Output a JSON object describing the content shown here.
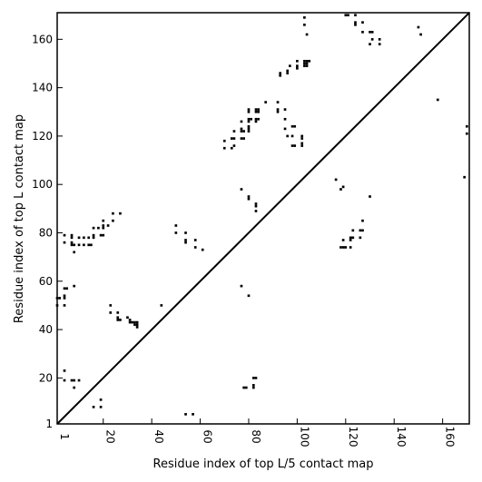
{
  "chart_data": {
    "type": "scatter",
    "xlabel": "Residue index of top L/5 contact map",
    "ylabel": "Residue index of top L contact map",
    "xlim": [
      1,
      171
    ],
    "ylim": [
      1,
      171
    ],
    "xticks": [
      {
        "value": 1,
        "label": "1"
      },
      {
        "value": 20,
        "label": "20"
      },
      {
        "value": 40,
        "label": "40"
      },
      {
        "value": 60,
        "label": "60"
      },
      {
        "value": 80,
        "label": "80"
      },
      {
        "value": 100,
        "label": "100"
      },
      {
        "value": 120,
        "label": "120"
      },
      {
        "value": 140,
        "label": "140"
      },
      {
        "value": 160,
        "label": "160"
      }
    ],
    "yticks": [
      {
        "value": 1,
        "label": "1"
      },
      {
        "value": 20,
        "label": "20"
      },
      {
        "value": 40,
        "label": "40"
      },
      {
        "value": 60,
        "label": "60"
      },
      {
        "value": 80,
        "label": "80"
      },
      {
        "value": 100,
        "label": "100"
      },
      {
        "value": 120,
        "label": "120"
      },
      {
        "value": 140,
        "label": "140"
      },
      {
        "value": 160,
        "label": "160"
      }
    ],
    "diagonal": [
      [
        1,
        1
      ],
      [
        171,
        171
      ]
    ],
    "grid": false,
    "marker": "square",
    "color": "#000000",
    "points": [
      [
        1,
        53
      ],
      [
        2,
        53
      ],
      [
        1,
        50
      ],
      [
        4,
        57
      ],
      [
        5,
        57
      ],
      [
        8,
        58
      ],
      [
        4,
        53
      ],
      [
        4,
        54
      ],
      [
        4,
        50
      ],
      [
        4,
        23
      ],
      [
        4,
        19
      ],
      [
        7,
        19
      ],
      [
        8,
        19
      ],
      [
        10,
        19
      ],
      [
        8,
        16
      ],
      [
        4,
        79
      ],
      [
        4,
        76
      ],
      [
        7,
        79
      ],
      [
        7,
        78
      ],
      [
        7,
        76
      ],
      [
        7,
        75
      ],
      [
        8,
        75
      ],
      [
        10,
        75
      ],
      [
        12,
        75
      ],
      [
        14,
        75
      ],
      [
        15,
        75
      ],
      [
        10,
        78
      ],
      [
        12,
        78
      ],
      [
        14,
        78
      ],
      [
        8,
        72
      ],
      [
        16,
        79
      ],
      [
        16,
        78
      ],
      [
        16,
        82
      ],
      [
        18,
        82
      ],
      [
        20,
        82
      ],
      [
        20,
        83
      ],
      [
        20,
        85
      ],
      [
        20,
        79
      ],
      [
        19,
        79
      ],
      [
        22,
        83
      ],
      [
        24,
        85
      ],
      [
        24,
        88
      ],
      [
        27,
        88
      ],
      [
        23,
        50
      ],
      [
        23,
        47
      ],
      [
        26,
        47
      ],
      [
        26,
        45
      ],
      [
        26,
        44
      ],
      [
        27,
        44
      ],
      [
        30,
        45
      ],
      [
        31,
        44
      ],
      [
        31,
        43
      ],
      [
        32,
        43
      ],
      [
        33,
        42
      ],
      [
        33,
        43
      ],
      [
        34,
        41
      ],
      [
        34,
        42
      ],
      [
        34,
        43
      ],
      [
        44,
        50
      ],
      [
        16,
        8
      ],
      [
        19,
        8
      ],
      [
        19,
        11
      ],
      [
        54,
        5
      ],
      [
        57,
        5
      ],
      [
        50,
        83
      ],
      [
        50,
        80
      ],
      [
        54,
        80
      ],
      [
        54,
        77
      ],
      [
        54,
        76
      ],
      [
        58,
        77
      ],
      [
        58,
        74
      ],
      [
        61,
        73
      ],
      [
        70,
        118
      ],
      [
        70,
        115
      ],
      [
        73,
        115
      ],
      [
        74,
        116
      ],
      [
        74,
        119
      ],
      [
        73,
        119
      ],
      [
        74,
        122
      ],
      [
        77,
        119
      ],
      [
        78,
        119
      ],
      [
        77,
        122
      ],
      [
        78,
        122
      ],
      [
        77,
        123
      ],
      [
        77,
        126
      ],
      [
        80,
        122
      ],
      [
        80,
        123
      ],
      [
        80,
        124
      ],
      [
        80,
        126
      ],
      [
        80,
        127
      ],
      [
        81,
        127
      ],
      [
        83,
        127
      ],
      [
        83,
        126
      ],
      [
        84,
        127
      ],
      [
        80,
        130
      ],
      [
        80,
        131
      ],
      [
        83,
        130
      ],
      [
        84,
        130
      ],
      [
        84,
        131
      ],
      [
        83,
        131
      ],
      [
        87,
        134
      ],
      [
        92,
        134
      ],
      [
        92,
        131
      ],
      [
        92,
        130
      ],
      [
        95,
        131
      ],
      [
        95,
        127
      ],
      [
        95,
        123
      ],
      [
        96,
        120
      ],
      [
        98,
        120
      ],
      [
        99,
        124
      ],
      [
        98,
        124
      ],
      [
        98,
        116
      ],
      [
        99,
        116
      ],
      [
        102,
        116
      ],
      [
        102,
        117
      ],
      [
        102,
        119
      ],
      [
        102,
        120
      ],
      [
        93,
        145
      ],
      [
        93,
        146
      ],
      [
        96,
        146
      ],
      [
        96,
        147
      ],
      [
        97,
        149
      ],
      [
        100,
        148
      ],
      [
        100,
        149
      ],
      [
        100,
        151
      ],
      [
        103,
        149
      ],
      [
        103,
        150
      ],
      [
        103,
        151
      ],
      [
        104,
        150
      ],
      [
        104,
        151
      ],
      [
        104,
        149
      ],
      [
        105,
        151
      ],
      [
        103,
        169
      ],
      [
        103,
        166
      ],
      [
        104,
        162
      ],
      [
        77,
        98
      ],
      [
        80,
        94
      ],
      [
        80,
        95
      ],
      [
        83,
        92
      ],
      [
        83,
        91
      ],
      [
        83,
        89
      ],
      [
        77,
        58
      ],
      [
        80,
        54
      ],
      [
        79,
        16
      ],
      [
        78,
        16
      ],
      [
        82,
        17
      ],
      [
        82,
        16
      ],
      [
        83,
        20
      ],
      [
        82,
        20
      ],
      [
        116,
        102
      ],
      [
        119,
        99
      ],
      [
        118,
        98
      ],
      [
        118,
        74
      ],
      [
        119,
        74
      ],
      [
        120,
        74
      ],
      [
        119,
        77
      ],
      [
        122,
        74
      ],
      [
        122,
        77
      ],
      [
        123,
        78
      ],
      [
        122,
        78
      ],
      [
        123,
        81
      ],
      [
        126,
        81
      ],
      [
        127,
        81
      ],
      [
        126,
        78
      ],
      [
        127,
        85
      ],
      [
        130,
        95
      ],
      [
        120,
        170
      ],
      [
        121,
        170
      ],
      [
        124,
        170
      ],
      [
        124,
        167
      ],
      [
        124,
        166
      ],
      [
        127,
        167
      ],
      [
        127,
        163
      ],
      [
        130,
        163
      ],
      [
        131,
        163
      ],
      [
        130,
        158
      ],
      [
        131,
        160
      ],
      [
        134,
        160
      ],
      [
        134,
        158
      ],
      [
        150,
        165
      ],
      [
        151,
        162
      ],
      [
        158,
        135
      ],
      [
        170,
        124
      ],
      [
        170,
        121
      ],
      [
        169,
        103
      ]
    ]
  }
}
